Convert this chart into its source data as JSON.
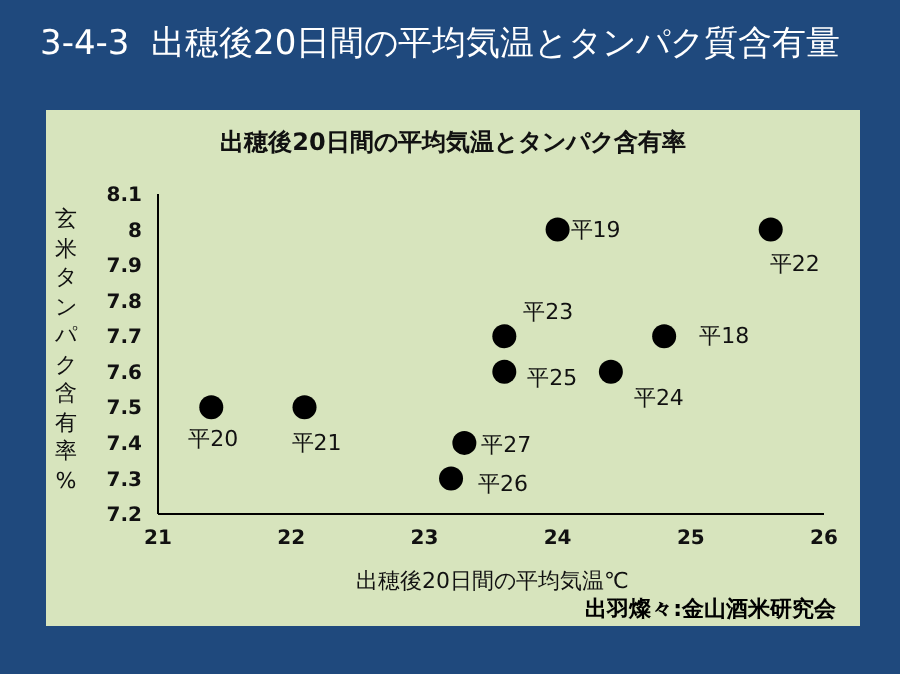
{
  "chart_data": {
    "type": "scatter",
    "title": "3-4-3  出穂後20日間の平均気温とタンパク質含有量",
    "subtitle": "出穂後20日間の平均気温とタンパク含有率",
    "xlabel": "出穂後20日間の平均気温℃",
    "ylabel": "玄米タンパク含有率%",
    "x": [
      24.0,
      25.6,
      23.6,
      24.8,
      23.6,
      24.4,
      21.4,
      22.1,
      23.3,
      23.2
    ],
    "series": [
      {
        "color": "#000000",
        "values": [
          8.0,
          8.0,
          7.7,
          7.7,
          7.6,
          7.6,
          7.5,
          7.5,
          7.4,
          7.3
        ]
      }
    ],
    "xlim": [
      21,
      26
    ],
    "xticks": [
      21,
      22,
      23,
      24,
      25,
      26
    ],
    "ylim": [
      7.2,
      8.1
    ],
    "yticks": [
      {
        "value": 7.2,
        "label": "7.2"
      },
      {
        "value": 7.3,
        "label": "7.3"
      },
      {
        "value": 7.4,
        "label": "7.4"
      },
      {
        "value": 7.5,
        "label": "7.5"
      },
      {
        "value": 7.6,
        "label": "7.6"
      },
      {
        "value": 7.7,
        "label": "7.7"
      },
      {
        "value": 7.8,
        "label": "7.8"
      },
      {
        "value": 7.9,
        "label": "7.9"
      },
      {
        "value": 8,
        "label": "8"
      },
      {
        "value": 8.1,
        "label": "8.1"
      }
    ],
    "marker": "circle",
    "grid": false,
    "legend": false,
    "annotations": [
      {
        "text": "平19",
        "x": 24.0,
        "y": 8.0
      },
      {
        "text": "平22",
        "x": 25.6,
        "y": 8.0
      },
      {
        "text": "平23",
        "x": 23.6,
        "y": 7.7
      },
      {
        "text": "平18",
        "x": 24.8,
        "y": 7.7
      },
      {
        "text": "平25",
        "x": 23.6,
        "y": 7.6
      },
      {
        "text": "平24",
        "x": 24.4,
        "y": 7.6
      },
      {
        "text": "平20",
        "x": 21.4,
        "y": 7.5
      },
      {
        "text": "平21",
        "x": 22.1,
        "y": 7.5
      },
      {
        "text": "平27",
        "x": 23.3,
        "y": 7.4
      },
      {
        "text": "平26",
        "x": 23.2,
        "y": 7.3
      },
      "出羽燦々:金山酒米研究会"
    ]
  }
}
